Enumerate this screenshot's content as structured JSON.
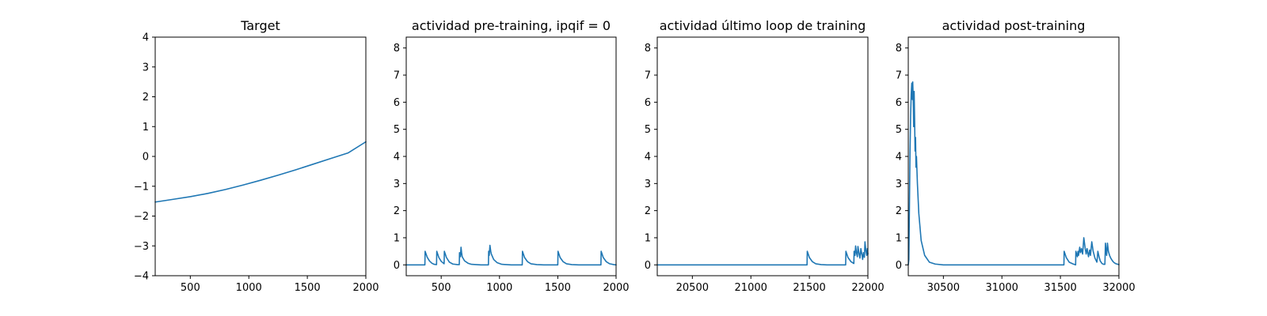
{
  "colors": {
    "series": "#1f77b4",
    "axes": "#000000",
    "background": "#ffffff"
  },
  "chart_data": [
    {
      "type": "line",
      "title": "Target",
      "xlabel": "",
      "ylabel": "",
      "xlim": [
        200,
        2000
      ],
      "ylim": [
        -4,
        4
      ],
      "x_ticks": [
        500,
        1000,
        1500,
        2000
      ],
      "y_ticks": [
        -4,
        -3,
        -2,
        -1,
        0,
        1,
        2,
        3,
        4
      ],
      "x_tick_labels": [
        "500",
        "1000",
        "1500",
        "2000"
      ],
      "y_tick_labels": [
        "−4",
        "−3",
        "−2",
        "−1",
        "0",
        "1",
        "2",
        "3",
        "4"
      ],
      "grid": false,
      "series": [
        {
          "x": [
            200,
            350,
            500,
            650,
            800,
            950,
            1100,
            1250,
            1400,
            1550,
            1700,
            1850,
            2000
          ],
          "y": [
            -1.53,
            -1.44,
            -1.35,
            -1.24,
            -1.11,
            -0.96,
            -0.8,
            -0.63,
            -0.45,
            -0.26,
            -0.07,
            0.12,
            0.49
          ]
        }
      ]
    },
    {
      "type": "line",
      "title": "actividad pre-training, ipqif = 0",
      "xlabel": "",
      "ylabel": "",
      "xlim": [
        200,
        2000
      ],
      "ylim": [
        -0.4,
        8.4
      ],
      "x_ticks": [
        500,
        1000,
        1500,
        2000
      ],
      "y_ticks": [
        0,
        1,
        2,
        3,
        4,
        5,
        6,
        7,
        8
      ],
      "x_tick_labels": [
        "500",
        "1000",
        "1500",
        "2000"
      ],
      "y_tick_labels": [
        "0",
        "1",
        "2",
        "3",
        "4",
        "5",
        "6",
        "7",
        "8"
      ],
      "grid": false,
      "series": [
        {
          "x": [
            200,
            360,
            362,
            380,
            400,
            420,
            440,
            460,
            462,
            480,
            500,
            525,
            527,
            545,
            570,
            600,
            640,
            655,
            657,
            665,
            670,
            675,
            680,
            700,
            730,
            760,
            800,
            840,
            880,
            905,
            907,
            912,
            918,
            925,
            930,
            950,
            980,
            1020,
            1060,
            1100,
            1150,
            1195,
            1197,
            1215,
            1240,
            1270,
            1320,
            1380,
            1440,
            1500,
            1502,
            1520,
            1545,
            1575,
            1620,
            1680,
            1740,
            1800,
            1870,
            1872,
            1890,
            1915,
            1945,
            1980,
            2000
          ],
          "y": [
            0,
            0,
            0.5,
            0.28,
            0.14,
            0.06,
            0.02,
            0.01,
            0.5,
            0.27,
            0.13,
            0.04,
            0.5,
            0.27,
            0.1,
            0.03,
            0.01,
            0.01,
            0.45,
            0.3,
            0.65,
            0.45,
            0.3,
            0.15,
            0.06,
            0.02,
            0.01,
            0,
            0,
            0,
            0.5,
            0.35,
            0.72,
            0.5,
            0.4,
            0.2,
            0.08,
            0.02,
            0.01,
            0,
            0,
            0,
            0.5,
            0.27,
            0.12,
            0.04,
            0.01,
            0,
            0,
            0,
            0.5,
            0.27,
            0.12,
            0.04,
            0.01,
            0,
            0,
            0,
            0,
            0.5,
            0.27,
            0.12,
            0.04,
            0.01,
            0
          ]
        }
      ]
    },
    {
      "type": "line",
      "title": "actividad último loop de training",
      "xlabel": "",
      "ylabel": "",
      "xlim": [
        20200,
        22000
      ],
      "ylim": [
        -0.4,
        8.4
      ],
      "x_ticks": [
        20500,
        21000,
        21500,
        22000
      ],
      "y_ticks": [
        0,
        1,
        2,
        3,
        4,
        5,
        6,
        7,
        8
      ],
      "x_tick_labels": [
        "20500",
        "21000",
        "21500",
        "22000"
      ],
      "y_tick_labels": [
        "0",
        "1",
        "2",
        "3",
        "4",
        "5",
        "6",
        "7",
        "8"
      ],
      "grid": false,
      "series": [
        {
          "x": [
            20200,
            21480,
            21482,
            21500,
            21525,
            21555,
            21600,
            21650,
            21700,
            21750,
            21810,
            21812,
            21830,
            21855,
            21880,
            21882,
            21890,
            21895,
            21902,
            21910,
            21915,
            21925,
            21932,
            21940,
            21950,
            21955,
            21962,
            21970,
            21975,
            21982,
            21990,
            21995,
            22000
          ],
          "y": [
            0,
            0,
            0.5,
            0.27,
            0.12,
            0.04,
            0.01,
            0,
            0,
            0,
            0,
            0.5,
            0.27,
            0.12,
            0.05,
            0.5,
            0.35,
            0.7,
            0.45,
            0.3,
            0.68,
            0.4,
            0.25,
            0.6,
            0.35,
            0.2,
            0.45,
            0.28,
            0.85,
            0.55,
            0.35,
            0.6,
            0.4
          ]
        }
      ]
    },
    {
      "type": "line",
      "title": "actividad post-training",
      "xlabel": "",
      "ylabel": "",
      "xlim": [
        30200,
        32000
      ],
      "ylim": [
        -0.4,
        8.4
      ],
      "x_ticks": [
        30500,
        31000,
        31500,
        32000
      ],
      "y_ticks": [
        0,
        1,
        2,
        3,
        4,
        5,
        6,
        7,
        8
      ],
      "x_tick_labels": [
        "30500",
        "31000",
        "31500",
        "32000"
      ],
      "y_tick_labels": [
        "0",
        "1",
        "2",
        "3",
        "4",
        "5",
        "6",
        "7",
        "8"
      ],
      "grid": false,
      "series": [
        {
          "x": [
            30200,
            30205,
            30215,
            30220,
            30225,
            30230,
            30235,
            30238,
            30242,
            30246,
            30250,
            30254,
            30258,
            30262,
            30266,
            30270,
            30278,
            30290,
            30310,
            30340,
            30380,
            30430,
            30500,
            30700,
            31000,
            31300,
            31530,
            31532,
            31550,
            31575,
            31610,
            31630,
            31632,
            31645,
            31650,
            31655,
            31665,
            31672,
            31680,
            31690,
            31700,
            31712,
            31720,
            31728,
            31740,
            31750,
            31757,
            31768,
            31780,
            31795,
            31812,
            31820,
            31830,
            31840,
            31855,
            31870,
            31880,
            31885,
            31890,
            31895,
            31902,
            31910,
            31920,
            31930,
            31940,
            31950,
            31960,
            31975,
            32000
          ],
          "y": [
            0,
            0.2,
            4.2,
            5.5,
            6.3,
            6.7,
            6.1,
            6.75,
            6.2,
            5.1,
            6.4,
            5.4,
            4.2,
            4.7,
            3.6,
            4.0,
            3.0,
            1.9,
            0.9,
            0.35,
            0.1,
            0.03,
            0,
            0,
            0,
            0,
            0,
            0.5,
            0.27,
            0.1,
            0.03,
            0,
            0.5,
            0.3,
            0.5,
            0.35,
            0.65,
            0.45,
            0.6,
            0.4,
            1.0,
            0.6,
            0.4,
            0.6,
            0.3,
            0.55,
            0.35,
            0.85,
            0.5,
            0.25,
            0.1,
            0.5,
            0.3,
            0.15,
            0.05,
            0.02,
            0.02,
            0.8,
            0.5,
            0.35,
            0.8,
            0.5,
            0.35,
            0.25,
            0.18,
            0.12,
            0.08,
            0.04,
            0.01
          ]
        }
      ]
    }
  ]
}
